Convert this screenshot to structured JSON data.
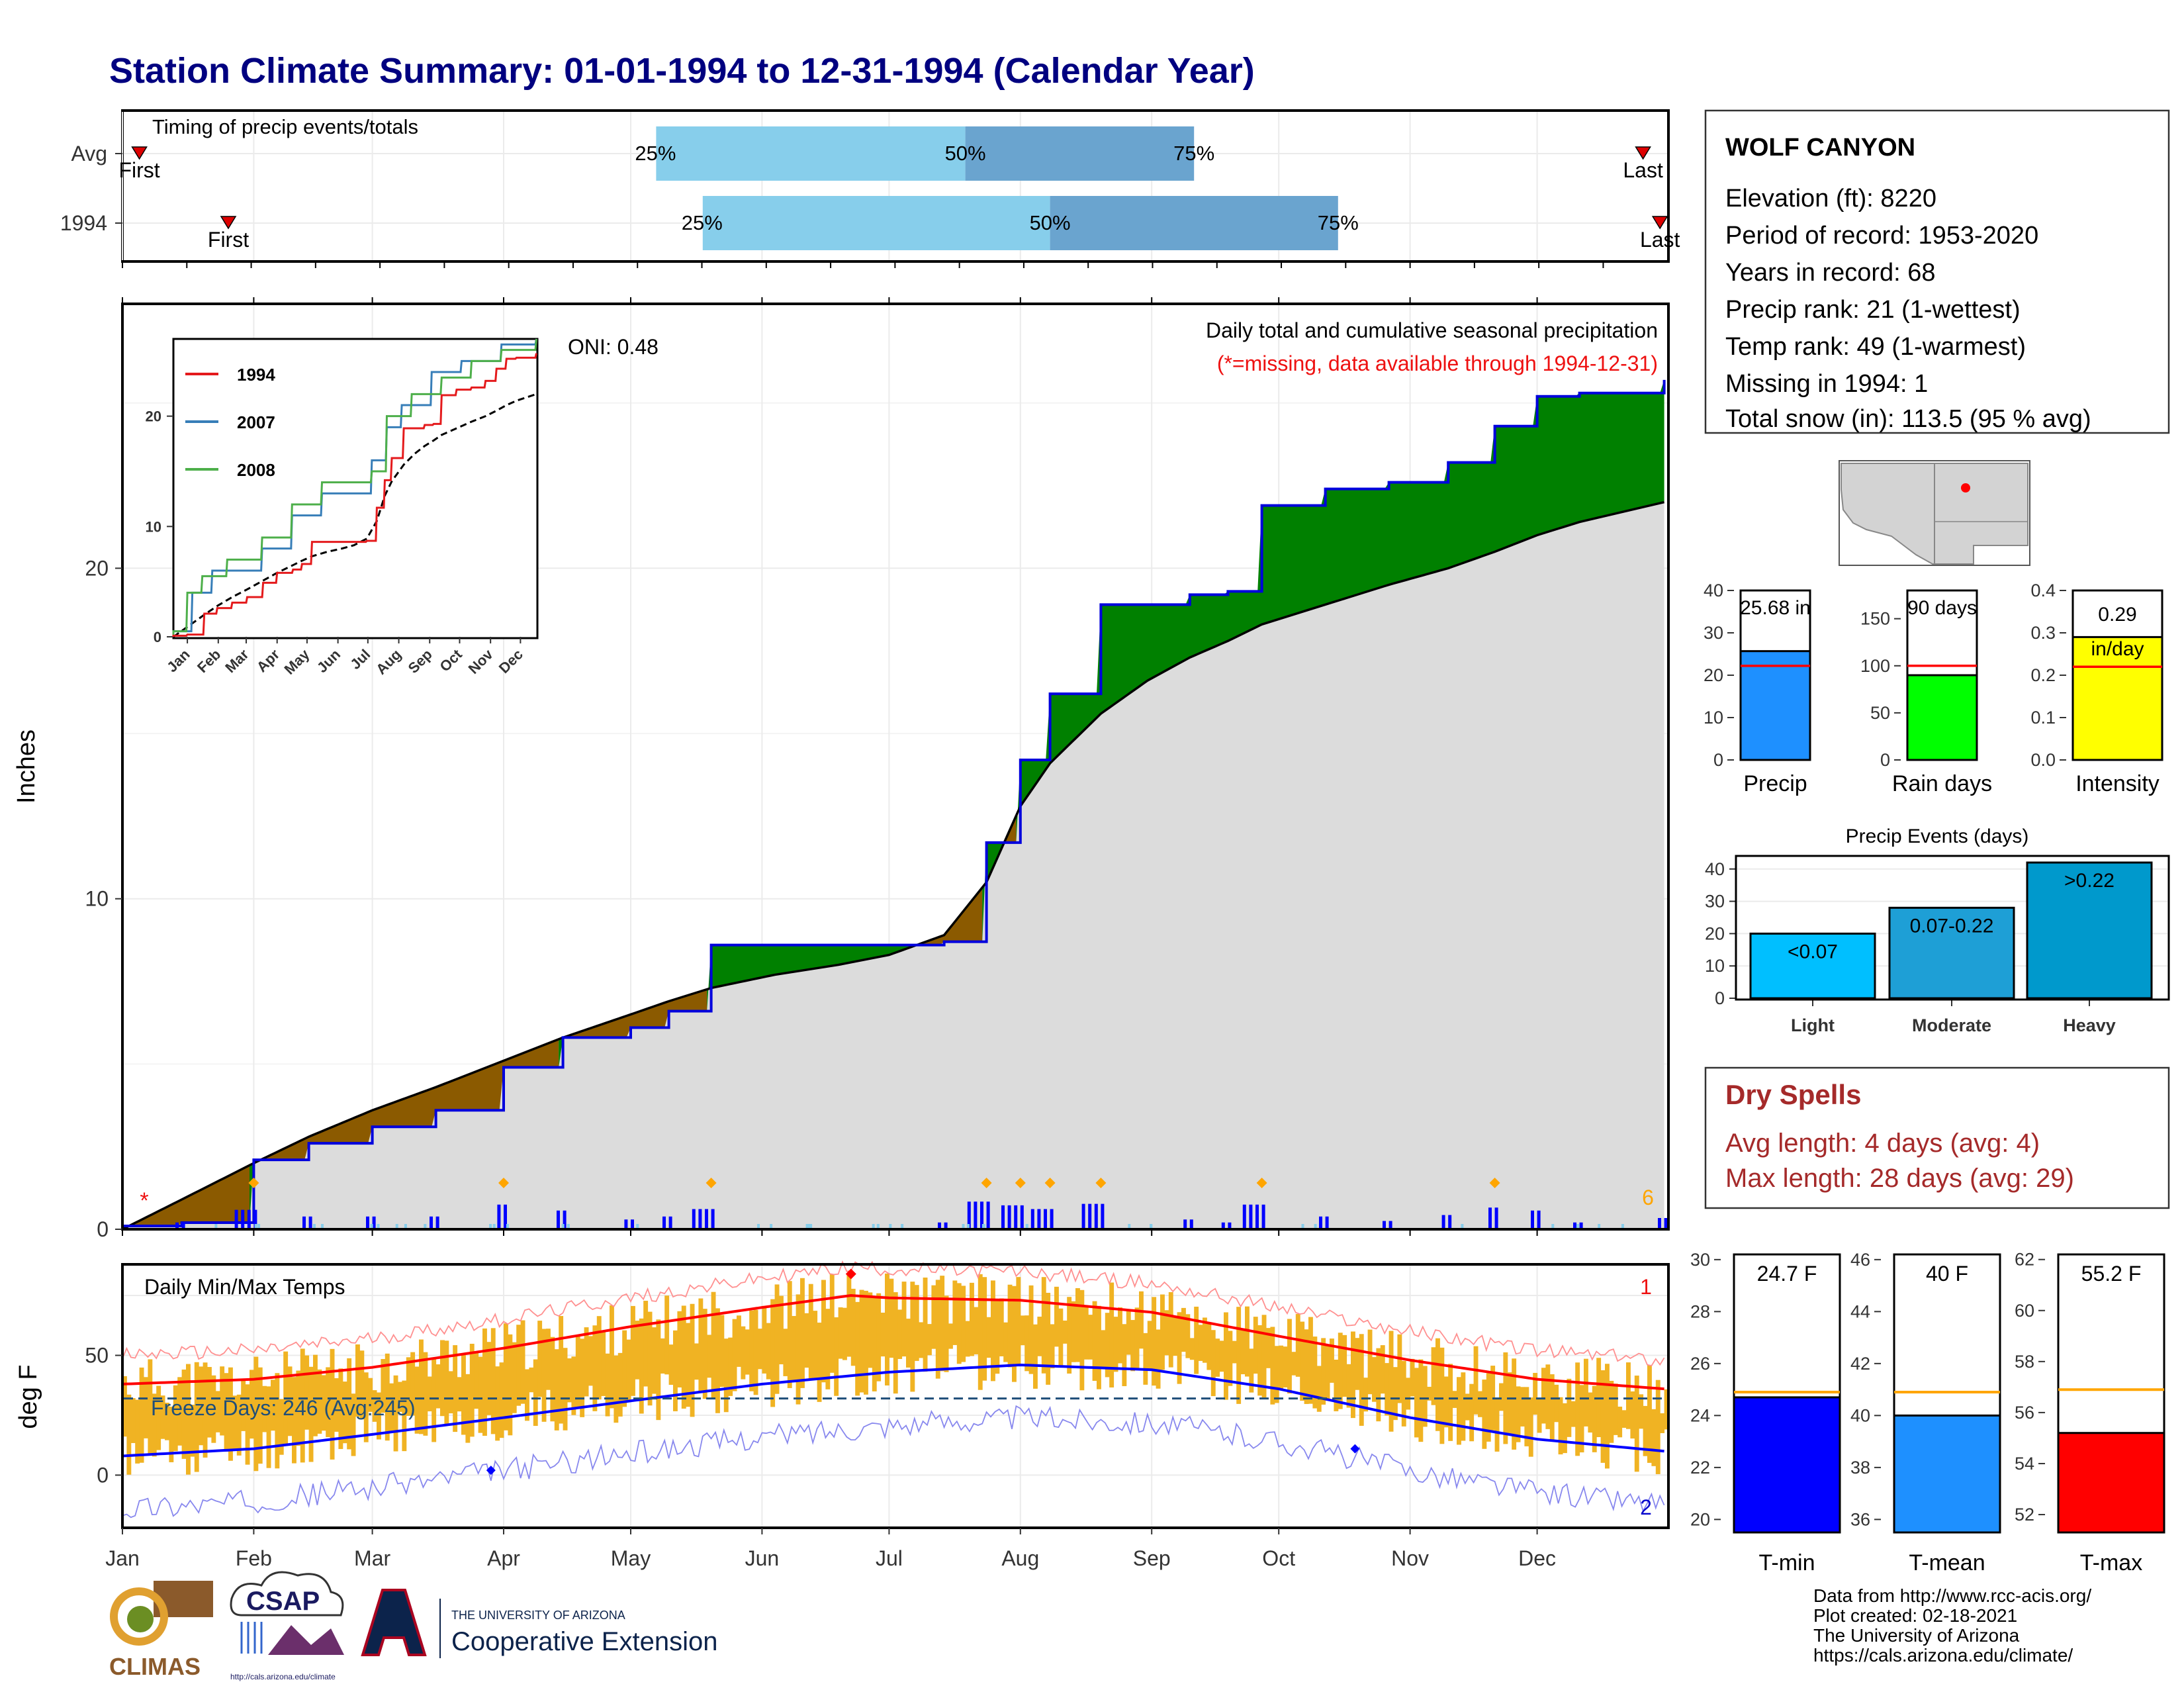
{
  "page": {
    "title": "Station Climate Summary: 01-01-1994 to 12-31-1994 (Calendar Year)",
    "colors": {
      "title": "#000080",
      "accent_red": "#d62020",
      "dry_spell": "#a52a2a"
    }
  },
  "months": [
    "Jan",
    "Feb",
    "Mar",
    "Apr",
    "May",
    "Jun",
    "Jul",
    "Aug",
    "Sep",
    "Oct",
    "Nov",
    "Dec"
  ],
  "timing": {
    "label": "Timing of precip events/totals",
    "rows": [
      {
        "name": "Avg",
        "first_label": "First",
        "last_label": "Last",
        "p25_label": "25%",
        "p50_label": "50%",
        "p75_label": "75%",
        "first_day": 5,
        "last_day": 360,
        "p25_day": 127,
        "p50_day": 200,
        "p75_day": 254
      },
      {
        "name": "1994",
        "first_label": "First",
        "last_label": "Last",
        "p25_label": "25%",
        "p50_label": "50%",
        "p75_label": "75%",
        "first_day": 26,
        "last_day": 364,
        "p25_day": 138,
        "p50_day": 220,
        "p75_day": 288
      }
    ]
  },
  "precip_panel": {
    "ylabel": "Inches",
    "yticks": [
      "0",
      "10",
      "20"
    ],
    "title": "Daily total and cumulative seasonal precipitation",
    "note": "(*=missing, data available through 1994-12-31)",
    "oni": "ONI: 0.48",
    "missing_marker": "*",
    "count_label": "6",
    "inset": {
      "yticks": [
        "0",
        "10",
        "20"
      ],
      "xticks": [
        "Jan",
        "Feb",
        "Mar",
        "Apr",
        "May",
        "Jun",
        "Jul",
        "Aug",
        "Sep",
        "Oct",
        "Nov",
        "Dec"
      ],
      "legend": [
        "1994",
        "2007",
        "2008"
      ]
    }
  },
  "temp_panel": {
    "ylabel": "deg F",
    "yticks": [
      "0",
      "50"
    ],
    "label": "Daily Min/Max Temps",
    "freeze_label": "Freeze Days: 246 (Avg:245)",
    "count_high": "1",
    "count_low": "2"
  },
  "station": {
    "name": "WOLF CANYON",
    "lines": [
      "Elevation (ft): 8220",
      "Period of record: 1953-2020",
      "Years in record: 68",
      "Precip rank: 21 (1-wettest)",
      "Temp rank: 49 (1-warmest)",
      "Missing in 1994: 1",
      "Total snow (in): 113.5 (95 % avg)"
    ]
  },
  "precip_bars": [
    {
      "xlabel": "Precip",
      "label": "25.68 in",
      "yticks": [
        "0",
        "10",
        "20",
        "30",
        "40"
      ],
      "color": "#1e90ff"
    },
    {
      "xlabel": "Rain days",
      "label": "90 days",
      "yticks": [
        "0",
        "50",
        "100",
        "150"
      ],
      "color": "#00ff00"
    },
    {
      "xlabel": "Intensity",
      "label": "0.29 in/day",
      "yticks": [
        "0.0",
        "0.1",
        "0.2",
        "0.3",
        "0.4"
      ],
      "color": "#ffff00"
    }
  ],
  "precip_events": {
    "title": "Precip Events (days)",
    "categories": [
      "Light",
      "Moderate",
      "Heavy"
    ],
    "labels": [
      "<0.07",
      "0.07-0.22",
      ">0.22"
    ],
    "yticks": [
      "0",
      "10",
      "20",
      "30",
      "40"
    ]
  },
  "dry_spells": {
    "title": "Dry Spells",
    "lines": [
      "Avg length: 4 days (avg: 4)",
      "Max length: 28 days (avg: 29)"
    ]
  },
  "temp_bars": [
    {
      "xlabel": "T-min",
      "label": "24.7 F",
      "yticks": [
        "20",
        "22",
        "24",
        "26",
        "28",
        "30"
      ],
      "color": "#0000ff"
    },
    {
      "xlabel": "T-mean",
      "label": "40 F",
      "yticks": [
        "36",
        "38",
        "40",
        "42",
        "44",
        "46"
      ],
      "color": "#1e90ff"
    },
    {
      "xlabel": "T-max",
      "label": "55.2 F",
      "yticks": [
        "52",
        "54",
        "56",
        "58",
        "60",
        "62"
      ],
      "color": "#ff0000"
    }
  ],
  "footer": {
    "lines": [
      "Data from http://www.rcc-acis.org/",
      "Plot created: 02-18-2021",
      "The University of Arizona",
      "https://cals.arizona.edu/climate/"
    ],
    "logo_climas": "CLIMAS",
    "logo_csap": "CSAP",
    "logo_csap_url": "http://cals.arizona.edu/climate",
    "logo_ua_small": "THE UNIVERSITY OF ARIZONA",
    "logo_ua_big": "Cooperative Extension"
  },
  "chart_data": [
    {
      "type": "area",
      "title": "Daily total and cumulative seasonal precipitation",
      "ylabel": "Inches",
      "ylim": [
        0,
        28
      ],
      "x_unit": "day of year",
      "series": [
        {
          "name": "1994",
          "x": [
            1,
            15,
            32,
            45,
            60,
            75,
            91,
            105,
            121,
            130,
            140,
            155,
            170,
            182,
            195,
            205,
            213,
            220,
            232,
            243,
            253,
            262,
            270,
            285,
            300,
            314,
            325,
            335,
            345,
            355,
            365
          ],
          "values": [
            0.1,
            0.2,
            2.1,
            2.6,
            3.1,
            3.6,
            4.9,
            5.8,
            6.1,
            6.6,
            8.6,
            8.6,
            8.6,
            8.6,
            8.7,
            11.7,
            14.2,
            16.2,
            18.9,
            18.9,
            19.2,
            19.3,
            21.9,
            22.4,
            22.6,
            23.2,
            24.3,
            25.2,
            25.3,
            25.3,
            25.7
          ]
        },
        {
          "values": [
            0,
            0.9,
            2.0,
            2.8,
            3.6,
            4.3,
            5.1,
            5.8,
            6.5,
            6.9,
            7.3,
            7.7,
            8.0,
            8.3,
            8.9,
            10.5,
            12.8,
            14.1,
            15.6,
            16.6,
            17.3,
            17.8,
            18.3,
            18.9,
            19.5,
            20.0,
            20.5,
            21.0,
            21.4,
            21.7,
            22.0
          ]
        }
      ]
    },
    {
      "type": "line",
      "x_unit": "day of year",
      "ylabel": "deg F",
      "series": [
        {
          "x": [
            1,
            32,
            60,
            91,
            121,
            152,
            173,
            182,
            213,
            244,
            274,
            305,
            335,
            365
          ],
          "values": [
            38,
            40,
            45,
            53,
            62,
            70,
            75,
            74,
            73,
            68,
            58,
            48,
            40,
            36
          ]
        },
        {
          "x": [
            1,
            32,
            60,
            91,
            121,
            152,
            182,
            213,
            244,
            274,
            305,
            335,
            365
          ],
          "values": [
            8,
            11,
            17,
            24,
            31,
            38,
            43,
            46,
            44,
            36,
            24,
            15,
            10
          ]
        }
      ]
    },
    {
      "type": "bar",
      "categories": [
        "Light",
        "Moderate",
        "Heavy"
      ],
      "values": [
        20,
        28,
        42
      ],
      "ylim": [
        0,
        42
      ]
    },
    {
      "type": "bar",
      "categories": [
        "Precip",
        "Rain days",
        "Intensity"
      ],
      "series": [
        {
          "values": [
            25.68,
            90,
            0.29
          ]
        },
        {
          "values": [
            22.2,
            100,
            0.22
          ]
        }
      ]
    },
    {
      "type": "bar",
      "categories": [
        "T-min",
        "T-mean",
        "T-max"
      ],
      "series": [
        {
          "values": [
            24.7,
            40,
            55.2
          ]
        },
        {
          "values": [
            24.9,
            40.9,
            56.9
          ]
        }
      ]
    }
  ]
}
